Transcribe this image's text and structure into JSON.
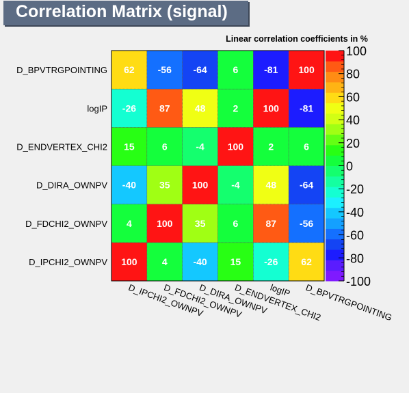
{
  "title": "Correlation Matrix (signal)",
  "chart_data": {
    "type": "heatmap",
    "subtitle": "Linear correlation coefficients in %",
    "x_labels": [
      "D_IPCHI2_OWNPV",
      "D_FDCHI2_OWNPV",
      "D_DIRA_OWNPV",
      "D_ENDVERTEX_CHI2",
      "logIP",
      "D_BPVTRGPOINTING"
    ],
    "y_labels_bottom_to_top": [
      "D_IPCHI2_OWNPV",
      "D_FDCHI2_OWNPV",
      "D_DIRA_OWNPV",
      "D_ENDVERTEX_CHI2",
      "logIP",
      "D_BPVTRGPOINTING"
    ],
    "values_rows_bottom_to_top": [
      [
        100,
        4,
        -40,
        15,
        -26,
        62
      ],
      [
        4,
        100,
        35,
        6,
        87,
        -56
      ],
      [
        -40,
        35,
        100,
        -4,
        48,
        -64
      ],
      [
        15,
        6,
        -4,
        100,
        2,
        6
      ],
      [
        -26,
        87,
        48,
        2,
        100,
        -81
      ],
      [
        62,
        -56,
        -64,
        6,
        -81,
        100
      ]
    ],
    "zlim": [
      -100,
      100
    ],
    "colorbar_ticks": [
      "100",
      "80",
      "60",
      "40",
      "20",
      "0",
      "-20",
      "-40",
      "-60",
      "-80",
      "-100"
    ],
    "palette": [
      "#7f1aff",
      "#5a1cff",
      "#1c1cff",
      "#1444f4",
      "#1470ff",
      "#14a0ff",
      "#14c8ff",
      "#1cf0ff",
      "#14ffd2",
      "#14ffa0",
      "#14ff6e",
      "#14ff3c",
      "#28ff14",
      "#64ff14",
      "#a0ff14",
      "#d2ff14",
      "#f0ff14",
      "#ffdc14",
      "#ffb414",
      "#ff8c14",
      "#ff5a14",
      "#ff1414"
    ]
  }
}
